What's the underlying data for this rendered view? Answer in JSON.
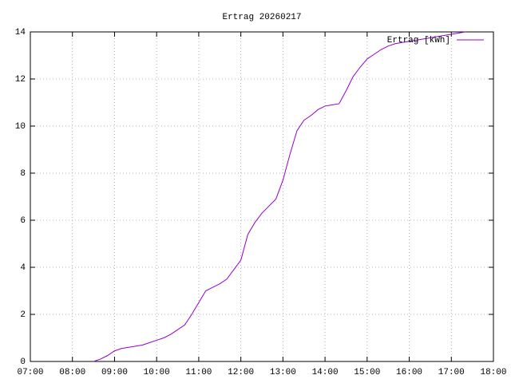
{
  "chart_data": {
    "type": "line",
    "title": "Ertrag 20260217",
    "x": [
      "08:30",
      "08:40",
      "08:50",
      "09:00",
      "09:10",
      "09:20",
      "09:30",
      "09:40",
      "09:50",
      "10:00",
      "10:10",
      "10:20",
      "10:30",
      "10:40",
      "10:50",
      "11:00",
      "11:10",
      "11:20",
      "11:30",
      "11:40",
      "11:50",
      "12:00",
      "12:10",
      "12:20",
      "12:30",
      "12:40",
      "12:50",
      "13:00",
      "13:10",
      "13:20",
      "13:30",
      "13:40",
      "13:50",
      "14:00",
      "14:10",
      "14:20",
      "14:30",
      "14:40",
      "14:50",
      "15:00",
      "15:10",
      "15:20",
      "15:30",
      "15:40",
      "15:50",
      "16:00",
      "16:10",
      "16:20",
      "16:30",
      "16:40",
      "16:50",
      "17:00",
      "17:10",
      "17:20"
    ],
    "series": [
      {
        "name": "Ertrag [kWh]",
        "color": "#9400d3",
        "values": [
          0,
          0.1,
          0.25,
          0.45,
          0.55,
          0.6,
          0.65,
          0.7,
          0.8,
          0.9,
          1.0,
          1.15,
          1.35,
          1.55,
          2.0,
          2.5,
          3.0,
          3.15,
          3.3,
          3.5,
          3.9,
          4.3,
          5.4,
          5.9,
          6.3,
          6.6,
          6.9,
          7.7,
          8.8,
          9.8,
          10.25,
          10.45,
          10.7,
          10.85,
          10.9,
          10.95,
          11.5,
          12.1,
          12.5,
          12.85,
          13.05,
          13.25,
          13.4,
          13.5,
          13.55,
          13.6,
          13.65,
          13.7,
          13.75,
          13.8,
          13.85,
          13.9,
          13.95,
          14.0
        ]
      }
    ],
    "xlim": [
      "07:00",
      "18:00"
    ],
    "xticks": [
      "07:00",
      "08:00",
      "09:00",
      "10:00",
      "11:00",
      "12:00",
      "13:00",
      "14:00",
      "15:00",
      "16:00",
      "17:00",
      "18:00"
    ],
    "ylim": [
      0,
      14
    ],
    "yticks": [
      0,
      2,
      4,
      6,
      8,
      10,
      12,
      14
    ],
    "grid": true,
    "legend": "top-right"
  }
}
